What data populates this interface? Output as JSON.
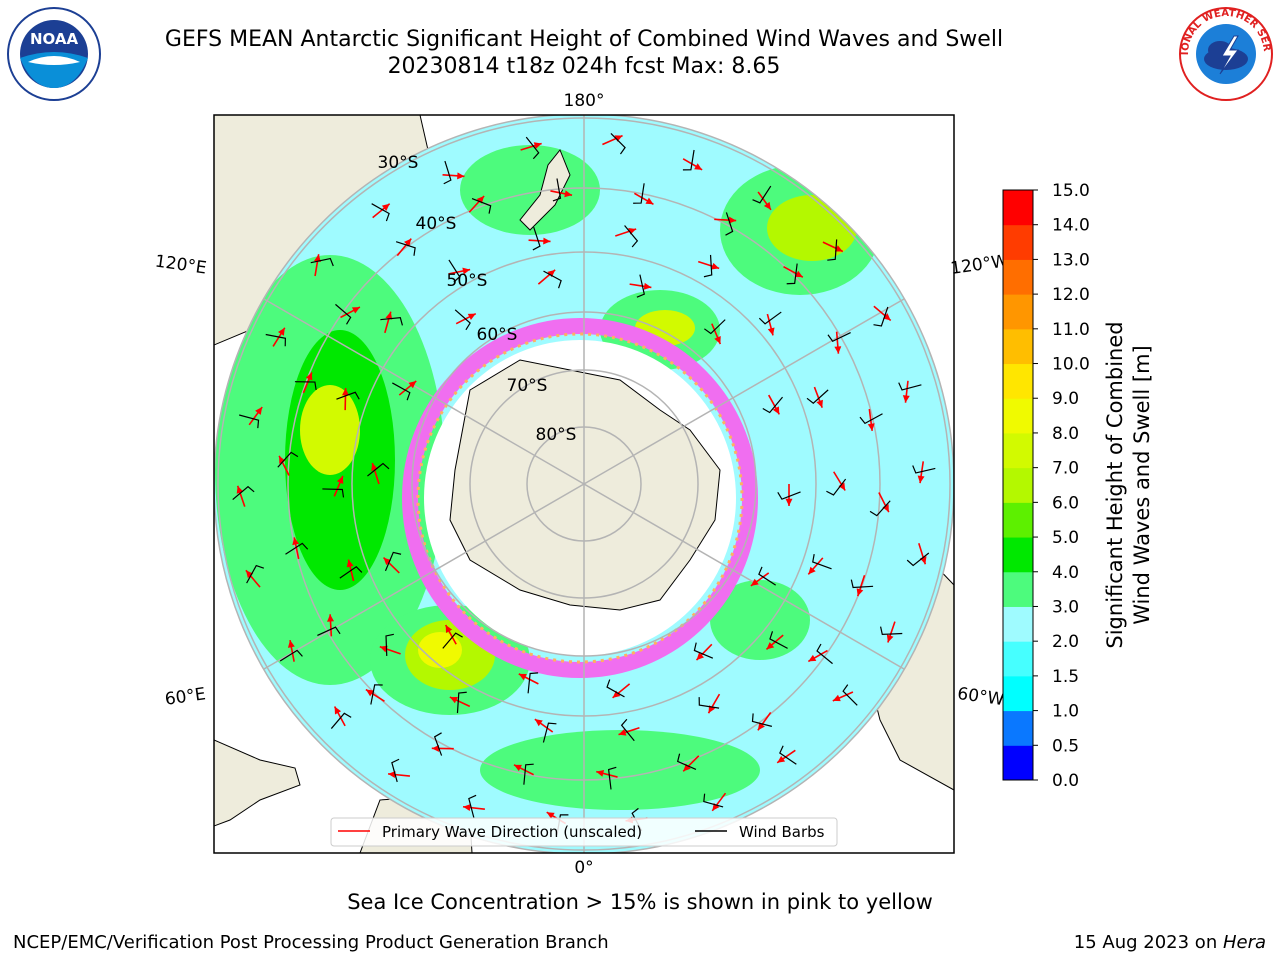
{
  "header": {
    "title_line1": "GEFS MEAN Antarctic Significant Height of Combined Wind Waves and Swell",
    "title_line2": "20230814 t18z 024h fcst   Max: 8.65"
  },
  "logos": {
    "left": {
      "icon": "noaa-logo",
      "text": "NOAA"
    },
    "right": {
      "icon": "nws-logo",
      "text": "NATIONAL WEATHER SERVICE"
    }
  },
  "map": {
    "projection": "south-polar-stereographic",
    "longitude_labels": {
      "top": "180°",
      "upper_left": "120°E",
      "upper_right": "120°W",
      "lower_left": "60°E",
      "lower_right": "60°W",
      "bottom": "0°"
    },
    "latitude_labels": [
      "30°S",
      "40°S",
      "50°S",
      "60°S",
      "70°S",
      "80°S"
    ],
    "colors": {
      "ocean_base": "#9ffbff",
      "land": "#eeecdc",
      "ice": "#ffffff",
      "ice_edge": "#f06ef0",
      "arrow": "#ff0000",
      "barb": "#000000",
      "grid": "#b4b4b4"
    },
    "legend": {
      "items": [
        {
          "label": "Primary Wave Direction (unscaled)",
          "color": "#ff0000"
        },
        {
          "label": "Wind Barbs",
          "color": "#000000"
        }
      ]
    }
  },
  "colorbar": {
    "label_line1": "Significant Height of Combined",
    "label_line2": "Wind Waves and Swell [m]",
    "ticks": [
      "0.0",
      "0.5",
      "1.0",
      "1.5",
      "2.0",
      "3.0",
      "4.0",
      "5.0",
      "6.0",
      "7.0",
      "8.0",
      "9.0",
      "10.0",
      "11.0",
      "12.0",
      "13.0",
      "14.0",
      "15.0"
    ],
    "colors": [
      "#0000ff",
      "#0a78ff",
      "#00ffff",
      "#46ffff",
      "#9ffbff",
      "#4dfb7d",
      "#00e800",
      "#5df000",
      "#b4f800",
      "#d2fa00",
      "#f0fa00",
      "#ffe600",
      "#ffbe00",
      "#ff9600",
      "#ff6e00",
      "#ff3c00",
      "#ff0000"
    ]
  },
  "notes": {
    "sea_ice": "Sea Ice Concentration > 15% is shown in pink to yellow"
  },
  "footer": {
    "left": "NCEP/EMC/Verification Post Processing Product Generation Branch",
    "right_date": "15 Aug 2023 on ",
    "right_host": "Hera"
  }
}
